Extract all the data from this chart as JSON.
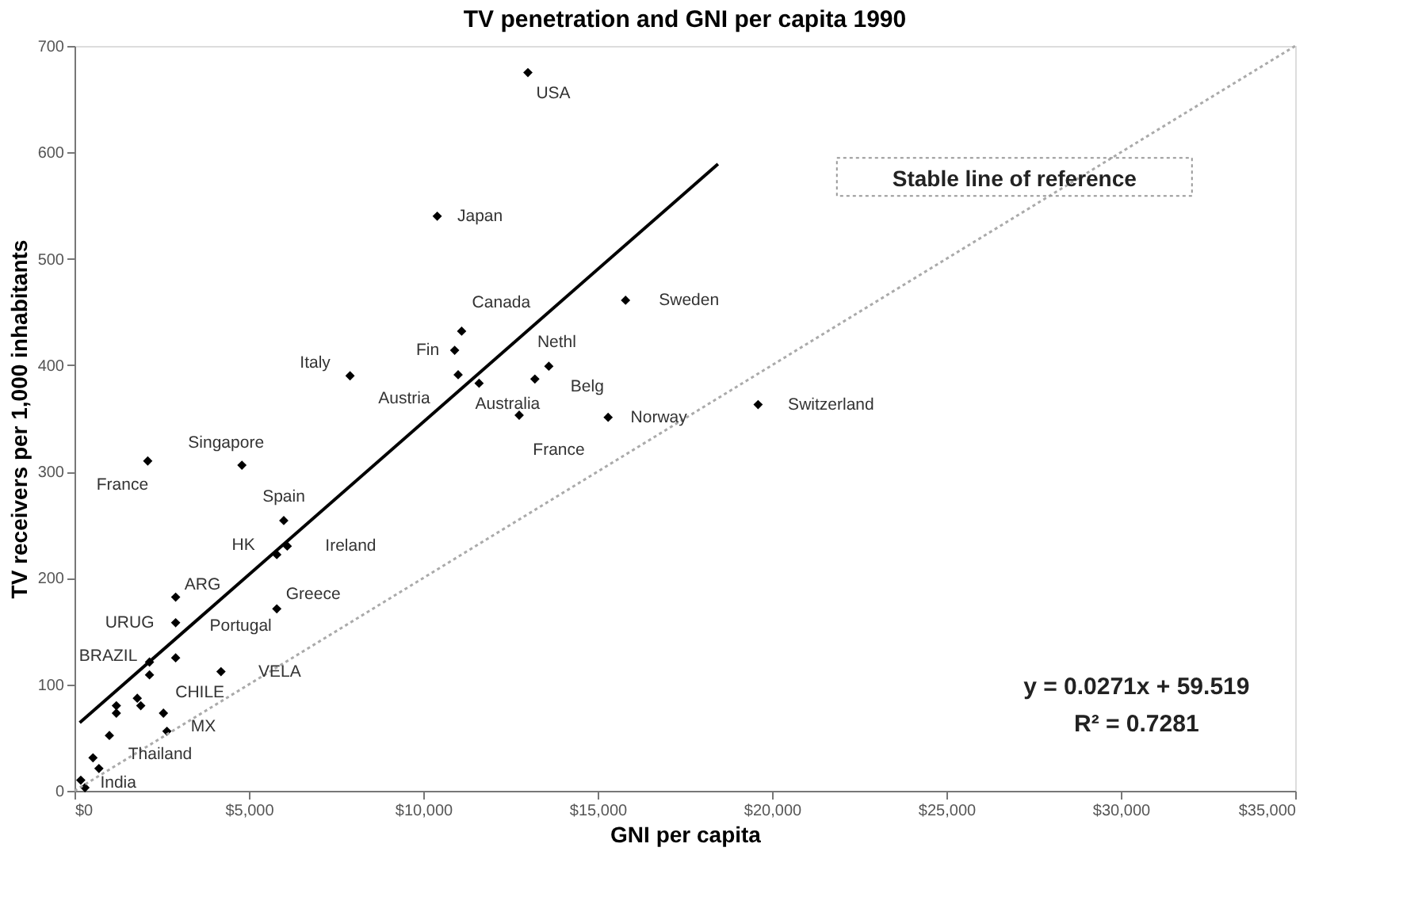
{
  "chart_data": {
    "type": "scatter",
    "title": "TV penetration and GNI per capita 1990",
    "xlabel": "GNI per capita",
    "ylabel": "TV receivers per 1,000 inhabitants",
    "xlim": [
      0,
      35000
    ],
    "ylim": [
      0,
      700
    ],
    "xticks": [
      {
        "value": 0,
        "label": "$0"
      },
      {
        "value": 5000,
        "label": "$5,000"
      },
      {
        "value": 10000,
        "label": "$10,000"
      },
      {
        "value": 15000,
        "label": "$15,000"
      },
      {
        "value": 20000,
        "label": "$20,000"
      },
      {
        "value": 25000,
        "label": "$25,000"
      },
      {
        "value": 30000,
        "label": "$30,000"
      },
      {
        "value": 35000,
        "label": "$35,000"
      }
    ],
    "yticks": [
      0,
      100,
      200,
      300,
      400,
      500,
      600,
      700
    ],
    "grid": false,
    "series": [
      {
        "marker": "diamond",
        "color": "#000000",
        "x": [
          13000,
          10400,
          15800,
          11100,
          10900,
          13600,
          7900,
          11000,
          11600,
          13200,
          12750,
          15300,
          19600,
          2100,
          4800,
          6000,
          6100,
          5800,
          2900,
          2900,
          5800,
          2900,
          2150,
          2150,
          4200,
          1200,
          1200,
          1800,
          1900,
          2550,
          2650,
          1000,
          530,
          700,
          180,
          300
        ],
        "values": [
          675,
          540,
          461,
          432,
          414,
          399,
          390,
          391,
          383,
          387,
          353,
          351,
          363,
          310,
          306,
          254,
          230,
          222,
          182,
          158,
          171,
          125,
          121,
          109,
          112,
          80,
          73,
          87,
          80,
          73,
          56,
          52,
          31,
          21,
          10,
          3
        ]
      },
      {
        "type": "line",
        "line_style": "solid",
        "color": "#000000",
        "x": [
          150,
          18450
        ],
        "values": [
          64,
          589
        ]
      },
      {
        "type": "line",
        "line_style": "dotted",
        "color": "#aaaaaa",
        "x": [
          0,
          35000
        ],
        "values": [
          0,
          700
        ]
      }
    ],
    "annotations": [
      "Stable line of reference",
      "y = 0.0271x + 59.519",
      "R² = 0.7281",
      {
        "text": "USA",
        "x": 13000,
        "y": 675
      },
      {
        "text": "Japan",
        "x": 10400,
        "y": 540
      },
      {
        "text": "Sweden",
        "x": 15800,
        "y": 461
      },
      {
        "text": "Canada",
        "x": 11100,
        "y": 432
      },
      {
        "text": "Fin",
        "x": 10900,
        "y": 414
      },
      {
        "text": "Nethl",
        "x": 13600,
        "y": 399
      },
      {
        "text": "Italy",
        "x": 7900,
        "y": 390
      },
      {
        "text": "Austria",
        "x": 11000,
        "y": 391
      },
      {
        "text": "Australia",
        "x": 11600,
        "y": 383
      },
      {
        "text": "Belg",
        "x": 13200,
        "y": 387
      },
      {
        "text": "Norway",
        "x": 15300,
        "y": 351
      },
      {
        "text": "Switzerland",
        "x": 19600,
        "y": 363
      },
      {
        "text": "France",
        "x": 12750,
        "y": 353
      },
      {
        "text": "Singapore",
        "x": 4800,
        "y": 306
      },
      {
        "text": "France",
        "x": 2100,
        "y": 310
      },
      {
        "text": "Spain",
        "x": 6000,
        "y": 254
      },
      {
        "text": "HK",
        "x": 5800,
        "y": 222
      },
      {
        "text": "Ireland",
        "x": 6100,
        "y": 230
      },
      {
        "text": "ARG",
        "x": 2900,
        "y": 182
      },
      {
        "text": "Greece",
        "x": 5800,
        "y": 171
      },
      {
        "text": "URUG",
        "x": 2900,
        "y": 158
      },
      {
        "text": "Portugal",
        "x": 2900,
        "y": 125
      },
      {
        "text": "BRAZIL",
        "x": 2150,
        "y": 121
      },
      {
        "text": "VELA",
        "x": 4200,
        "y": 112
      },
      {
        "text": "CHILE",
        "x": 2550,
        "y": 73
      },
      {
        "text": "MX",
        "x": 2650,
        "y": 56
      },
      {
        "text": "Thailand",
        "x": 1000,
        "y": 52
      },
      {
        "text": "India",
        "x": 300,
        "y": 3
      }
    ]
  }
}
